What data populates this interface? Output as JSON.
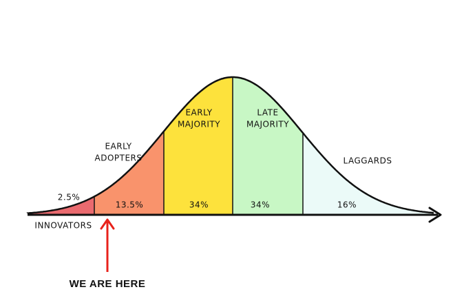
{
  "title": [
    "WE ARE HERE"
  ],
  "segments": [
    {
      "label": [
        "INNOVATORS"
      ],
      "percent": "2.5%"
    },
    {
      "label": [
        "EARLY",
        "ADOPTERS"
      ],
      "percent": "13.5%"
    },
    {
      "label": [
        "EARLY",
        "MAJORITY"
      ],
      "percent": "34%"
    },
    {
      "label": [
        "LATE",
        "MAJORITY"
      ],
      "percent": "34%"
    },
    {
      "label": [
        "LAGGARDS"
      ],
      "percent": "16%"
    }
  ]
}
